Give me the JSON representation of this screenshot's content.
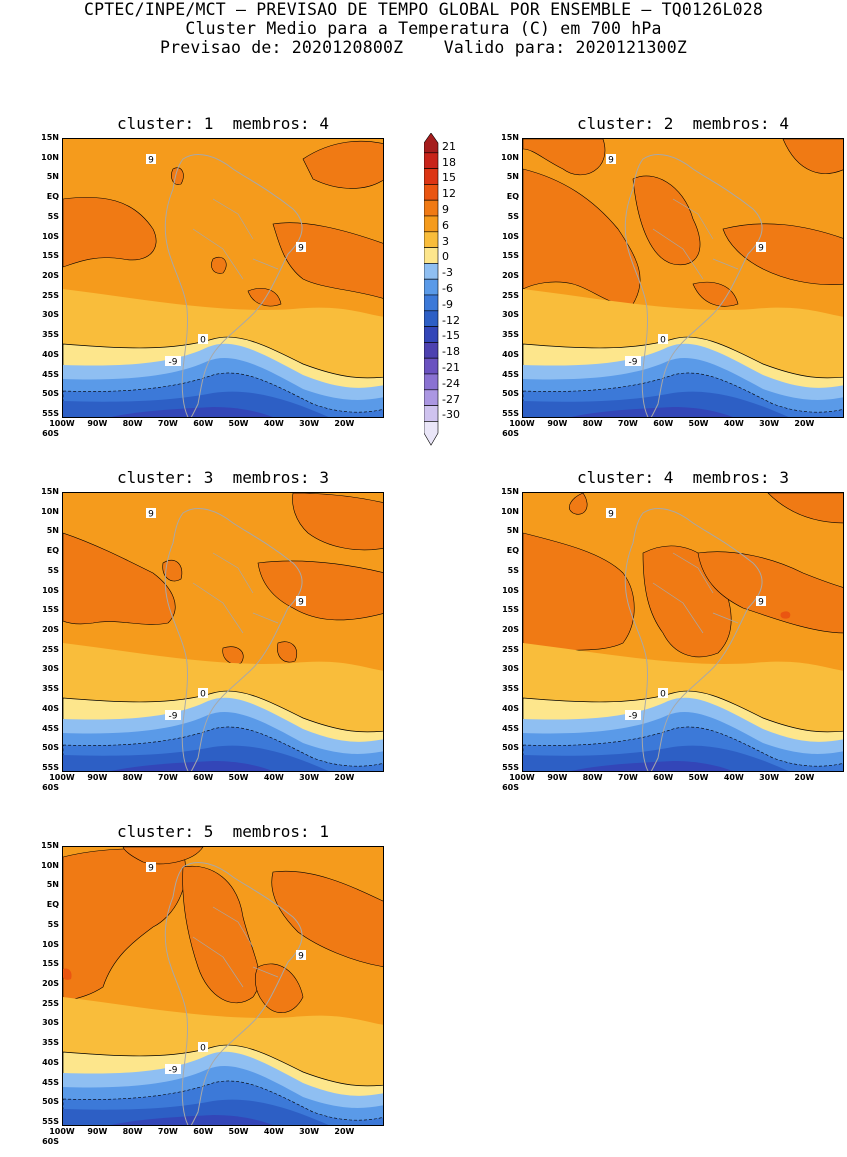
{
  "header": {
    "line1": "CPTEC/INPE/MCT — PREVISAO DE TEMPO GLOBAL POR ENSEMBLE — TQ0126L028",
    "line2": "Cluster Medio para a Temperatura (C) em 700 hPa",
    "line3": "Previsao de: 2020120800Z    Valido para: 2020121300Z"
  },
  "panels": [
    {
      "title": "cluster: 1  membros: 4"
    },
    {
      "title": "cluster: 2  membros: 4"
    },
    {
      "title": "cluster: 3  membros: 3"
    },
    {
      "title": "cluster: 4  membros: 3"
    },
    {
      "title": "cluster: 5  membros: 1"
    }
  ],
  "axes": {
    "lat_labels": [
      "15N",
      "10N",
      "5N",
      "EQ",
      "5S",
      "10S",
      "15S",
      "20S",
      "25S",
      "30S",
      "35S",
      "40S",
      "45S",
      "50S",
      "55S",
      "60S"
    ],
    "lon_labels": [
      "100W",
      "90W",
      "80W",
      "70W",
      "60W",
      "50W",
      "40W",
      "30W",
      "20W"
    ]
  },
  "contour_labels": {
    "warm": "9",
    "zero": "0",
    "cold": "-9"
  },
  "colorbar": {
    "labels": [
      "21",
      "18",
      "15",
      "12",
      "9",
      "6",
      "3",
      "0",
      "-3",
      "-6",
      "-9",
      "-12",
      "-15",
      "-18",
      "-21",
      "-24",
      "-27",
      "-30"
    ],
    "colors": [
      "#a51d1d",
      "#c8241a",
      "#dc3514",
      "#ea5511",
      "#f07a14",
      "#f59b1c",
      "#f9bd3b",
      "#fde68c",
      "#8fbff2",
      "#5a9ae8",
      "#3c79d8",
      "#2d5fc5",
      "#3346b8",
      "#4d41b0",
      "#6a52c0",
      "#8a72d2",
      "#ab97e2",
      "#cfc3ef",
      "#eae6f8"
    ]
  },
  "legend_colors": {
    "band12": "#ea5511",
    "band9": "#f07a14",
    "band6": "#f59b1c",
    "band3": "#f9bd3b",
    "band0": "#fde68c",
    "bandm3": "#8fbff2",
    "bandm6": "#5a9ae8",
    "bandm9": "#3c79d8",
    "bandm12": "#2d5fc5",
    "bandm15": "#3346b8",
    "bandm18": "#4d41b0",
    "land_outline": "#a8a8a8"
  }
}
